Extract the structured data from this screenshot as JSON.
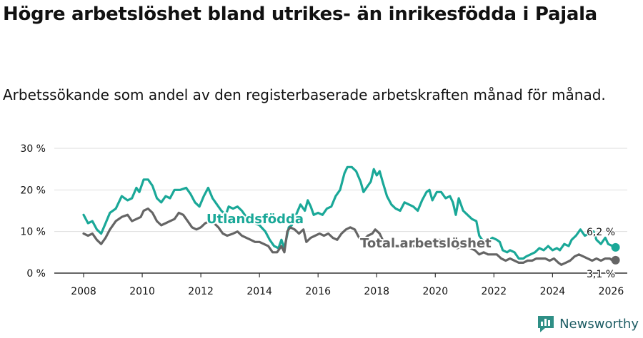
{
  "title": "Högre arbetslöshet bland utrikes- än inrikesfödda i Pajala",
  "subtitle": "Arbetssökande som andel av den registerbaserade arbetskraften månad för månad.",
  "brand": "Newsworthy",
  "brand_logo_icon": "bar-chart-icon",
  "colors": {
    "foreign": "#1aa898",
    "total": "#656565",
    "grid": "#dddddd",
    "axis": "#333333",
    "text": "#111111"
  },
  "chart_data": {
    "type": "line",
    "title": "Högre arbetslöshet bland utrikes- än inrikesfödda i Pajala",
    "xlabel": "",
    "ylabel": "",
    "xlim": [
      2007.0,
      2026.55
    ],
    "ylim": [
      0,
      30
    ],
    "y_ticks": [
      0,
      10,
      20,
      30
    ],
    "y_tick_labels": [
      "0 %",
      "10 %",
      "20 %",
      "30 %"
    ],
    "x_ticks": [
      2008,
      2010,
      2012,
      2014,
      2016,
      2018,
      2020,
      2022,
      2024,
      2026
    ],
    "x_tick_labels": [
      "2008",
      "2010",
      "2012",
      "2014",
      "2016",
      "2018",
      "2020",
      "2022",
      "2024",
      "2026"
    ],
    "series": [
      {
        "name": "Utlandsfödda",
        "label": "Utlandsfödda",
        "end_label": "6,2 %",
        "points": [
          [
            2008.0,
            14.0
          ],
          [
            2008.15,
            12.0
          ],
          [
            2008.3,
            12.5
          ],
          [
            2008.45,
            10.5
          ],
          [
            2008.6,
            9.5
          ],
          [
            2008.75,
            12.0
          ],
          [
            2008.9,
            14.5
          ],
          [
            2009.1,
            15.5
          ],
          [
            2009.3,
            18.5
          ],
          [
            2009.5,
            17.5
          ],
          [
            2009.65,
            18.0
          ],
          [
            2009.8,
            20.5
          ],
          [
            2009.9,
            19.5
          ],
          [
            2010.05,
            22.5
          ],
          [
            2010.2,
            22.5
          ],
          [
            2010.35,
            21.0
          ],
          [
            2010.5,
            18.0
          ],
          [
            2010.65,
            17.0
          ],
          [
            2010.8,
            18.5
          ],
          [
            2010.95,
            18.0
          ],
          [
            2011.1,
            20.0
          ],
          [
            2011.3,
            20.0
          ],
          [
            2011.5,
            20.5
          ],
          [
            2011.65,
            19.0
          ],
          [
            2011.8,
            17.0
          ],
          [
            2011.95,
            16.0
          ],
          [
            2012.1,
            18.5
          ],
          [
            2012.25,
            20.5
          ],
          [
            2012.4,
            18.0
          ],
          [
            2012.55,
            16.5
          ],
          [
            2012.7,
            15.0
          ],
          [
            2012.85,
            14.0
          ],
          [
            2012.95,
            16.0
          ],
          [
            2013.1,
            15.5
          ],
          [
            2013.25,
            16.0
          ],
          [
            2013.4,
            15.0
          ],
          [
            2013.55,
            13.5
          ],
          [
            2013.7,
            12.5
          ],
          [
            2013.85,
            12.0
          ],
          [
            2014.0,
            11.5
          ],
          [
            2014.2,
            10.0
          ],
          [
            2014.35,
            8.0
          ],
          [
            2014.5,
            6.5
          ],
          [
            2014.65,
            6.0
          ],
          [
            2014.75,
            8.0
          ],
          [
            2014.85,
            6.0
          ],
          [
            2015.0,
            11.0
          ],
          [
            2015.1,
            11.5
          ],
          [
            2015.25,
            14.0
          ],
          [
            2015.4,
            16.5
          ],
          [
            2015.55,
            15.0
          ],
          [
            2015.65,
            17.5
          ],
          [
            2015.75,
            16.0
          ],
          [
            2015.85,
            14.0
          ],
          [
            2016.0,
            14.5
          ],
          [
            2016.15,
            14.0
          ],
          [
            2016.3,
            15.5
          ],
          [
            2016.45,
            16.0
          ],
          [
            2016.6,
            18.5
          ],
          [
            2016.75,
            20.0
          ],
          [
            2016.9,
            24.0
          ],
          [
            2017.0,
            25.5
          ],
          [
            2017.15,
            25.5
          ],
          [
            2017.3,
            24.5
          ],
          [
            2017.45,
            22.0
          ],
          [
            2017.55,
            19.5
          ],
          [
            2017.7,
            21.0
          ],
          [
            2017.8,
            22.0
          ],
          [
            2017.9,
            25.0
          ],
          [
            2018.0,
            23.5
          ],
          [
            2018.1,
            24.5
          ],
          [
            2018.2,
            22.0
          ],
          [
            2018.35,
            18.5
          ],
          [
            2018.5,
            16.5
          ],
          [
            2018.65,
            15.5
          ],
          [
            2018.8,
            15.0
          ],
          [
            2018.95,
            17.0
          ],
          [
            2019.1,
            16.5
          ],
          [
            2019.25,
            16.0
          ],
          [
            2019.4,
            15.0
          ],
          [
            2019.55,
            17.5
          ],
          [
            2019.7,
            19.5
          ],
          [
            2019.8,
            20.0
          ],
          [
            2019.9,
            17.5
          ],
          [
            2020.05,
            19.5
          ],
          [
            2020.2,
            19.5
          ],
          [
            2020.35,
            18.0
          ],
          [
            2020.5,
            18.5
          ],
          [
            2020.6,
            17.0
          ],
          [
            2020.7,
            14.0
          ],
          [
            2020.8,
            18.0
          ],
          [
            2020.95,
            15.0
          ],
          [
            2021.1,
            14.0
          ],
          [
            2021.25,
            13.0
          ],
          [
            2021.4,
            12.5
          ],
          [
            2021.5,
            9.0
          ],
          [
            2021.6,
            8.0
          ],
          [
            2021.75,
            7.5
          ],
          [
            2021.85,
            8.0
          ],
          [
            2021.95,
            8.5
          ],
          [
            2022.1,
            8.0
          ],
          [
            2022.2,
            7.5
          ],
          [
            2022.3,
            5.5
          ],
          [
            2022.45,
            5.0
          ],
          [
            2022.55,
            5.5
          ],
          [
            2022.7,
            5.0
          ],
          [
            2022.85,
            3.5
          ],
          [
            2023.0,
            3.5
          ],
          [
            2023.1,
            4.0
          ],
          [
            2023.25,
            4.5
          ],
          [
            2023.4,
            5.0
          ],
          [
            2023.55,
            6.0
          ],
          [
            2023.7,
            5.5
          ],
          [
            2023.85,
            6.5
          ],
          [
            2024.0,
            5.5
          ],
          [
            2024.15,
            6.0
          ],
          [
            2024.25,
            5.5
          ],
          [
            2024.4,
            7.0
          ],
          [
            2024.55,
            6.5
          ],
          [
            2024.65,
            8.0
          ],
          [
            2024.8,
            9.0
          ],
          [
            2024.95,
            10.5
          ],
          [
            2025.1,
            9.0
          ],
          [
            2025.25,
            9.5
          ],
          [
            2025.4,
            10.0
          ],
          [
            2025.5,
            8.0
          ],
          [
            2025.65,
            7.0
          ],
          [
            2025.8,
            8.5
          ],
          [
            2025.9,
            7.0
          ],
          [
            2026.05,
            6.5
          ],
          [
            2026.15,
            6.2
          ]
        ]
      },
      {
        "name": "Total arbetslöshet",
        "label": "Total arbetslöshet",
        "end_label": "3,1 %",
        "points": [
          [
            2008.0,
            9.5
          ],
          [
            2008.15,
            9.0
          ],
          [
            2008.3,
            9.5
          ],
          [
            2008.45,
            8.0
          ],
          [
            2008.6,
            7.0
          ],
          [
            2008.75,
            8.5
          ],
          [
            2008.9,
            10.5
          ],
          [
            2009.1,
            12.5
          ],
          [
            2009.3,
            13.5
          ],
          [
            2009.5,
            14.0
          ],
          [
            2009.65,
            12.5
          ],
          [
            2009.8,
            13.0
          ],
          [
            2009.95,
            13.5
          ],
          [
            2010.05,
            15.0
          ],
          [
            2010.2,
            15.5
          ],
          [
            2010.35,
            14.5
          ],
          [
            2010.5,
            12.5
          ],
          [
            2010.65,
            11.5
          ],
          [
            2010.8,
            12.0
          ],
          [
            2010.95,
            12.5
          ],
          [
            2011.1,
            13.0
          ],
          [
            2011.25,
            14.5
          ],
          [
            2011.4,
            14.0
          ],
          [
            2011.55,
            12.5
          ],
          [
            2011.7,
            11.0
          ],
          [
            2011.85,
            10.5
          ],
          [
            2012.0,
            11.0
          ],
          [
            2012.15,
            12.0
          ],
          [
            2012.3,
            12.5
          ],
          [
            2012.45,
            12.0
          ],
          [
            2012.6,
            11.0
          ],
          [
            2012.75,
            9.5
          ],
          [
            2012.9,
            9.0
          ],
          [
            2013.1,
            9.5
          ],
          [
            2013.25,
            10.0
          ],
          [
            2013.4,
            9.0
          ],
          [
            2013.55,
            8.5
          ],
          [
            2013.7,
            8.0
          ],
          [
            2013.85,
            7.5
          ],
          [
            2014.0,
            7.5
          ],
          [
            2014.15,
            7.0
          ],
          [
            2014.3,
            6.5
          ],
          [
            2014.45,
            5.0
          ],
          [
            2014.6,
            5.0
          ],
          [
            2014.75,
            6.5
          ],
          [
            2014.85,
            5.0
          ],
          [
            2014.95,
            10.0
          ],
          [
            2015.05,
            11.0
          ],
          [
            2015.2,
            10.5
          ],
          [
            2015.35,
            9.5
          ],
          [
            2015.5,
            10.5
          ],
          [
            2015.6,
            7.5
          ],
          [
            2015.75,
            8.5
          ],
          [
            2015.9,
            9.0
          ],
          [
            2016.05,
            9.5
          ],
          [
            2016.2,
            9.0
          ],
          [
            2016.35,
            9.5
          ],
          [
            2016.5,
            8.5
          ],
          [
            2016.65,
            8.0
          ],
          [
            2016.8,
            9.5
          ],
          [
            2016.95,
            10.5
          ],
          [
            2017.1,
            11.0
          ],
          [
            2017.25,
            10.5
          ],
          [
            2017.4,
            8.5
          ],
          [
            2017.55,
            8.0
          ],
          [
            2017.7,
            9.0
          ],
          [
            2017.85,
            9.5
          ],
          [
            2017.95,
            10.5
          ],
          [
            2018.1,
            9.5
          ],
          [
            2018.2,
            8.0
          ],
          [
            2018.35,
            7.5
          ],
          [
            2018.5,
            7.0
          ],
          [
            2018.65,
            6.5
          ],
          [
            2018.8,
            6.5
          ],
          [
            2018.95,
            7.0
          ],
          [
            2019.1,
            7.0
          ],
          [
            2019.25,
            6.5
          ],
          [
            2019.4,
            6.5
          ],
          [
            2019.55,
            7.0
          ],
          [
            2019.7,
            7.5
          ],
          [
            2019.85,
            7.0
          ],
          [
            2020.0,
            7.5
          ],
          [
            2020.15,
            8.0
          ],
          [
            2020.3,
            7.5
          ],
          [
            2020.45,
            7.0
          ],
          [
            2020.6,
            6.5
          ],
          [
            2020.75,
            6.0
          ],
          [
            2020.9,
            6.5
          ],
          [
            2021.05,
            6.5
          ],
          [
            2021.2,
            6.0
          ],
          [
            2021.35,
            5.5
          ],
          [
            2021.5,
            4.5
          ],
          [
            2021.65,
            5.0
          ],
          [
            2021.8,
            4.5
          ],
          [
            2021.95,
            4.5
          ],
          [
            2022.1,
            4.5
          ],
          [
            2022.25,
            3.5
          ],
          [
            2022.4,
            3.0
          ],
          [
            2022.55,
            3.5
          ],
          [
            2022.7,
            3.0
          ],
          [
            2022.85,
            2.5
          ],
          [
            2023.0,
            2.5
          ],
          [
            2023.15,
            3.0
          ],
          [
            2023.3,
            3.0
          ],
          [
            2023.45,
            3.5
          ],
          [
            2023.6,
            3.5
          ],
          [
            2023.75,
            3.5
          ],
          [
            2023.9,
            3.0
          ],
          [
            2024.05,
            3.5
          ],
          [
            2024.2,
            2.5
          ],
          [
            2024.3,
            2.0
          ],
          [
            2024.45,
            2.5
          ],
          [
            2024.6,
            3.0
          ],
          [
            2024.75,
            4.0
          ],
          [
            2024.9,
            4.5
          ],
          [
            2025.05,
            4.0
          ],
          [
            2025.2,
            3.5
          ],
          [
            2025.35,
            3.0
          ],
          [
            2025.5,
            3.5
          ],
          [
            2025.65,
            3.0
          ],
          [
            2025.8,
            3.5
          ],
          [
            2025.95,
            3.5
          ],
          [
            2026.05,
            3.0
          ],
          [
            2026.15,
            3.1
          ]
        ]
      }
    ]
  }
}
